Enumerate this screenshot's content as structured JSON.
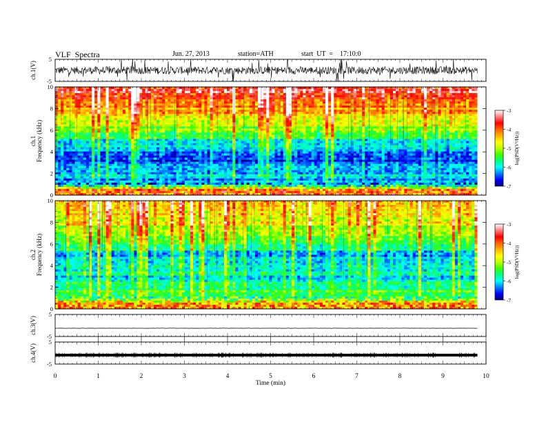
{
  "header": {
    "title": "VLF  Spectra",
    "date": "Jun. 27, 2013",
    "station": "station=ATH",
    "start": "start  UT  =    17:10:0"
  },
  "colorbar": {
    "label": "log(PSD(V²/Hz))",
    "ticks": [
      "-3",
      "-4",
      "-5",
      "-6",
      "-7"
    ],
    "colors": [
      "#000080",
      "#0000ff",
      "#0080ff",
      "#00ffff",
      "#00ff80",
      "#40ff00",
      "#c0ff00",
      "#ffff00",
      "#ffb000",
      "#ff6000",
      "#ff0000",
      "#ff8080",
      "#ffffff"
    ]
  },
  "chart_data": [
    {
      "type": "line",
      "panel": "ch1-timeseries",
      "ylabel": "ch.1(V)",
      "ylim": [
        -5,
        5
      ],
      "yticks": [
        "5",
        "-5"
      ],
      "x": [
        0,
        1,
        2,
        3,
        4,
        5,
        6,
        7,
        8,
        9,
        9.8
      ],
      "values": [
        0,
        0,
        0,
        0,
        0,
        0,
        0,
        0,
        0,
        0,
        0
      ]
    },
    {
      "type": "heatmap",
      "panel": "ch1-spectrogram",
      "ylabel_top": "ch.1",
      "ylabel": "Frequency  (kHz)",
      "ylim": [
        0,
        10
      ],
      "yticks": [
        "0",
        "2",
        "4",
        "6",
        "8",
        "10"
      ],
      "freq_bands_kHz": [
        0.5,
        1,
        2,
        3,
        4,
        5,
        6,
        7,
        8,
        9,
        9.8
      ],
      "log_psd": [
        -4,
        -6.3,
        -6,
        -6.5,
        -6.4,
        -5.8,
        -5.2,
        -4.6,
        -4.2,
        -3.8,
        -3.5
      ]
    },
    {
      "type": "heatmap",
      "panel": "ch2-spectrogram",
      "ylabel_top": "ch.2",
      "ylabel": "Frequency  (kHz)",
      "ylim": [
        0,
        10
      ],
      "yticks": [
        "0",
        "2",
        "4",
        "6",
        "8",
        "10"
      ],
      "freq_bands_kHz": [
        0.5,
        1,
        2,
        3,
        4,
        5,
        6,
        7,
        8,
        9,
        9.8
      ],
      "log_psd": [
        -4.2,
        -5.5,
        -5.5,
        -5.9,
        -5.8,
        -6.2,
        -5.3,
        -5.2,
        -4.7,
        -4.6,
        -4.4
      ]
    },
    {
      "type": "line",
      "panel": "ch3-timeseries",
      "ylabel": "ch.3(V)",
      "ylim": [
        -5,
        5
      ],
      "yticks": [
        "5",
        "-5"
      ],
      "x": [
        0,
        9.8
      ],
      "values": [
        0,
        0
      ]
    },
    {
      "type": "line",
      "panel": "ch4-timeseries",
      "ylabel": "ch.4(V)",
      "ylim": [
        -5,
        5
      ],
      "yticks": [
        "5",
        "-5"
      ],
      "x": [
        0,
        9.8
      ],
      "values": [
        0,
        0
      ]
    }
  ],
  "xaxis": {
    "label": "Time  (min)",
    "ticks": [
      "0",
      "1",
      "2",
      "3",
      "4",
      "5",
      "6",
      "7",
      "8",
      "9",
      "10"
    ],
    "xlim": [
      0,
      10
    ],
    "data_end": 9.8
  }
}
